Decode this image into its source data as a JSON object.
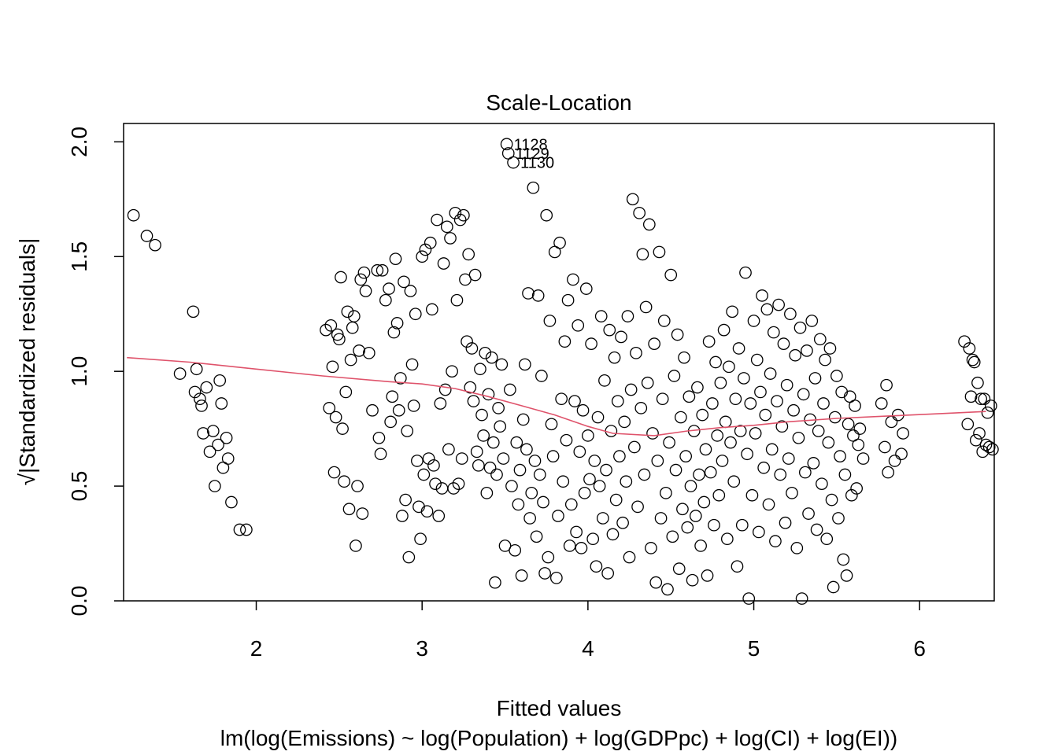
{
  "chart_data": {
    "type": "scatter",
    "title": "Scale-Location",
    "xlabel": "Fitted values",
    "subtitle": "lm(log(Emissions) ~ log(Population) + log(GDPpc) + log(CI) + log(EI))",
    "ylabel": "√|Standardized residuals|",
    "xlim": [
      1.2,
      6.45
    ],
    "ylim": [
      0.0,
      2.08
    ],
    "x_ticks": [
      "2",
      "3",
      "4",
      "5",
      "6"
    ],
    "y_ticks": [
      "0.0",
      "0.5",
      "1.0",
      "1.5",
      "2.0"
    ],
    "point_style": "open-circle",
    "smoother_color": "#DF536B",
    "smoother": [
      [
        1.22,
        1.06
      ],
      [
        1.6,
        1.04
      ],
      [
        2.0,
        1.01
      ],
      [
        2.4,
        0.98
      ],
      [
        2.8,
        0.955
      ],
      [
        3.0,
        0.945
      ],
      [
        3.2,
        0.925
      ],
      [
        3.4,
        0.89
      ],
      [
        3.6,
        0.85
      ],
      [
        3.8,
        0.81
      ],
      [
        4.0,
        0.76
      ],
      [
        4.15,
        0.73
      ],
      [
        4.4,
        0.72
      ],
      [
        4.6,
        0.74
      ],
      [
        4.8,
        0.755
      ],
      [
        5.0,
        0.765
      ],
      [
        5.2,
        0.78
      ],
      [
        5.5,
        0.795
      ],
      [
        5.8,
        0.805
      ],
      [
        6.1,
        0.815
      ],
      [
        6.4,
        0.825
      ]
    ],
    "labeled_points": [
      {
        "label": "1128",
        "x": 3.51,
        "y": 1.99
      },
      {
        "label": "1129",
        "x": 3.52,
        "y": 1.95
      },
      {
        "label": "1130",
        "x": 3.55,
        "y": 1.91
      }
    ],
    "points": [
      [
        1.26,
        1.68
      ],
      [
        1.34,
        1.59
      ],
      [
        1.39,
        1.55
      ],
      [
        1.54,
        0.99
      ],
      [
        1.62,
        1.26
      ],
      [
        1.63,
        0.91
      ],
      [
        1.64,
        1.01
      ],
      [
        1.66,
        0.88
      ],
      [
        1.67,
        0.85
      ],
      [
        1.68,
        0.73
      ],
      [
        1.7,
        0.93
      ],
      [
        1.72,
        0.65
      ],
      [
        1.74,
        0.74
      ],
      [
        1.75,
        0.5
      ],
      [
        1.77,
        0.68
      ],
      [
        1.78,
        0.96
      ],
      [
        1.79,
        0.86
      ],
      [
        1.8,
        0.58
      ],
      [
        1.82,
        0.71
      ],
      [
        1.83,
        0.62
      ],
      [
        1.85,
        0.43
      ],
      [
        1.9,
        0.31
      ],
      [
        1.94,
        0.31
      ],
      [
        2.42,
        1.18
      ],
      [
        2.44,
        0.84
      ],
      [
        2.45,
        1.2
      ],
      [
        2.46,
        1.02
      ],
      [
        2.47,
        0.56
      ],
      [
        2.48,
        0.8
      ],
      [
        2.49,
        1.16
      ],
      [
        2.5,
        1.14
      ],
      [
        2.51,
        1.41
      ],
      [
        2.52,
        0.75
      ],
      [
        2.53,
        0.52
      ],
      [
        2.54,
        0.91
      ],
      [
        2.55,
        1.26
      ],
      [
        2.56,
        0.4
      ],
      [
        2.57,
        1.05
      ],
      [
        2.58,
        1.19
      ],
      [
        2.59,
        1.24
      ],
      [
        2.6,
        0.24
      ],
      [
        2.61,
        0.5
      ],
      [
        2.62,
        1.09
      ],
      [
        2.63,
        1.4
      ],
      [
        2.64,
        0.38
      ],
      [
        2.65,
        1.43
      ],
      [
        2.66,
        1.35
      ],
      [
        2.68,
        1.08
      ],
      [
        2.7,
        0.83
      ],
      [
        2.73,
        1.44
      ],
      [
        2.74,
        0.71
      ],
      [
        2.75,
        0.64
      ],
      [
        2.76,
        1.44
      ],
      [
        2.78,
        1.31
      ],
      [
        2.8,
        1.36
      ],
      [
        2.81,
        0.78
      ],
      [
        2.82,
        0.89
      ],
      [
        2.83,
        1.17
      ],
      [
        2.84,
        1.49
      ],
      [
        2.85,
        1.21
      ],
      [
        2.86,
        0.83
      ],
      [
        2.87,
        0.97
      ],
      [
        2.88,
        0.37
      ],
      [
        2.89,
        1.39
      ],
      [
        2.9,
        0.44
      ],
      [
        2.91,
        0.74
      ],
      [
        2.92,
        0.19
      ],
      [
        2.93,
        1.35
      ],
      [
        2.94,
        1.03
      ],
      [
        2.95,
        0.85
      ],
      [
        2.96,
        1.25
      ],
      [
        2.97,
        0.61
      ],
      [
        2.98,
        0.41
      ],
      [
        2.99,
        0.27
      ],
      [
        3.0,
        1.5
      ],
      [
        3.01,
        0.55
      ],
      [
        3.02,
        1.53
      ],
      [
        3.03,
        0.39
      ],
      [
        3.04,
        0.62
      ],
      [
        3.05,
        1.56
      ],
      [
        3.06,
        1.27
      ],
      [
        3.07,
        0.59
      ],
      [
        3.08,
        0.51
      ],
      [
        3.09,
        1.66
      ],
      [
        3.1,
        0.37
      ],
      [
        3.11,
        0.86
      ],
      [
        3.12,
        0.49
      ],
      [
        3.13,
        1.47
      ],
      [
        3.14,
        0.92
      ],
      [
        3.15,
        1.63
      ],
      [
        3.16,
        0.66
      ],
      [
        3.17,
        1.58
      ],
      [
        3.18,
        1.0
      ],
      [
        3.19,
        0.49
      ],
      [
        3.2,
        1.69
      ],
      [
        3.21,
        1.31
      ],
      [
        3.22,
        0.51
      ],
      [
        3.23,
        1.66
      ],
      [
        3.24,
        0.62
      ],
      [
        3.25,
        1.68
      ],
      [
        3.26,
        1.4
      ],
      [
        3.27,
        1.13
      ],
      [
        3.28,
        1.51
      ],
      [
        3.29,
        0.93
      ],
      [
        3.3,
        1.1
      ],
      [
        3.31,
        0.87
      ],
      [
        3.32,
        1.42
      ],
      [
        3.33,
        0.65
      ],
      [
        3.34,
        0.59
      ],
      [
        3.35,
        1.01
      ],
      [
        3.36,
        0.81
      ],
      [
        3.37,
        0.72
      ],
      [
        3.38,
        1.08
      ],
      [
        3.39,
        0.47
      ],
      [
        3.4,
        0.9
      ],
      [
        3.41,
        0.58
      ],
      [
        3.42,
        1.06
      ],
      [
        3.43,
        0.69
      ],
      [
        3.44,
        0.08
      ],
      [
        3.45,
        0.55
      ],
      [
        3.46,
        0.84
      ],
      [
        3.47,
        0.76
      ],
      [
        3.48,
        1.03
      ],
      [
        3.49,
        0.62
      ],
      [
        3.5,
        0.24
      ],
      [
        3.51,
        1.99
      ],
      [
        3.52,
        1.95
      ],
      [
        3.53,
        0.92
      ],
      [
        3.54,
        0.5
      ],
      [
        3.55,
        1.91
      ],
      [
        3.56,
        0.22
      ],
      [
        3.57,
        0.69
      ],
      [
        3.58,
        0.42
      ],
      [
        3.59,
        0.57
      ],
      [
        3.6,
        0.11
      ],
      [
        3.61,
        0.79
      ],
      [
        3.62,
        1.03
      ],
      [
        3.63,
        0.66
      ],
      [
        3.64,
        1.34
      ],
      [
        3.65,
        0.36
      ],
      [
        3.66,
        0.47
      ],
      [
        3.67,
        1.8
      ],
      [
        3.68,
        0.61
      ],
      [
        3.69,
        0.28
      ],
      [
        3.7,
        1.33
      ],
      [
        3.71,
        0.55
      ],
      [
        3.72,
        0.98
      ],
      [
        3.73,
        0.43
      ],
      [
        3.74,
        0.12
      ],
      [
        3.75,
        1.68
      ],
      [
        3.76,
        0.19
      ],
      [
        3.77,
        1.22
      ],
      [
        3.78,
        0.77
      ],
      [
        3.79,
        0.63
      ],
      [
        3.8,
        1.52
      ],
      [
        3.81,
        0.1
      ],
      [
        3.82,
        0.37
      ],
      [
        3.83,
        1.56
      ],
      [
        3.84,
        0.88
      ],
      [
        3.85,
        0.52
      ],
      [
        3.86,
        1.13
      ],
      [
        3.87,
        0.7
      ],
      [
        3.88,
        1.31
      ],
      [
        3.89,
        0.24
      ],
      [
        3.9,
        0.42
      ],
      [
        3.91,
        1.4
      ],
      [
        3.92,
        0.87
      ],
      [
        3.93,
        0.3
      ],
      [
        3.94,
        1.2
      ],
      [
        3.95,
        0.65
      ],
      [
        3.96,
        0.23
      ],
      [
        3.97,
        0.83
      ],
      [
        3.98,
        0.47
      ],
      [
        3.99,
        1.36
      ],
      [
        4.0,
        0.72
      ],
      [
        4.01,
        0.53
      ],
      [
        4.02,
        1.12
      ],
      [
        4.03,
        0.27
      ],
      [
        4.04,
        0.61
      ],
      [
        4.05,
        0.15
      ],
      [
        4.06,
        0.8
      ],
      [
        4.07,
        0.5
      ],
      [
        4.08,
        1.24
      ],
      [
        4.09,
        0.36
      ],
      [
        4.1,
        0.96
      ],
      [
        4.11,
        0.57
      ],
      [
        4.12,
        0.12
      ],
      [
        4.13,
        1.18
      ],
      [
        4.14,
        0.74
      ],
      [
        4.15,
        0.29
      ],
      [
        4.16,
        1.06
      ],
      [
        4.17,
        0.44
      ],
      [
        4.18,
        0.87
      ],
      [
        4.19,
        0.63
      ],
      [
        4.2,
        1.15
      ],
      [
        4.21,
        0.34
      ],
      [
        4.22,
        0.78
      ],
      [
        4.23,
        0.52
      ],
      [
        4.24,
        1.24
      ],
      [
        4.25,
        0.19
      ],
      [
        4.26,
        0.92
      ],
      [
        4.27,
        1.75
      ],
      [
        4.28,
        0.67
      ],
      [
        4.29,
        1.08
      ],
      [
        4.3,
        0.41
      ],
      [
        4.31,
        1.69
      ],
      [
        4.32,
        0.84
      ],
      [
        4.33,
        1.51
      ],
      [
        4.34,
        0.55
      ],
      [
        4.35,
        1.28
      ],
      [
        4.36,
        0.95
      ],
      [
        4.37,
        1.64
      ],
      [
        4.38,
        0.23
      ],
      [
        4.39,
        0.73
      ],
      [
        4.4,
        1.12
      ],
      [
        4.41,
        0.08
      ],
      [
        4.42,
        0.61
      ],
      [
        4.43,
        1.52
      ],
      [
        4.44,
        0.36
      ],
      [
        4.45,
        0.88
      ],
      [
        4.46,
        1.22
      ],
      [
        4.47,
        0.47
      ],
      [
        4.48,
        0.05
      ],
      [
        4.49,
        0.69
      ],
      [
        4.5,
        1.42
      ],
      [
        4.51,
        0.28
      ],
      [
        4.52,
        0.98
      ],
      [
        4.53,
        0.57
      ],
      [
        4.54,
        1.16
      ],
      [
        4.55,
        0.14
      ],
      [
        4.56,
        0.8
      ],
      [
        4.57,
        0.4
      ],
      [
        4.58,
        1.06
      ],
      [
        4.59,
        0.63
      ],
      [
        4.6,
        0.32
      ],
      [
        4.61,
        0.89
      ],
      [
        4.62,
        0.5
      ],
      [
        4.63,
        0.09
      ],
      [
        4.64,
        0.74
      ],
      [
        4.65,
        0.37
      ],
      [
        4.66,
        0.93
      ],
      [
        4.67,
        0.55
      ],
      [
        4.68,
        0.24
      ],
      [
        4.69,
        0.81
      ],
      [
        4.7,
        0.43
      ],
      [
        4.71,
        0.66
      ],
      [
        4.72,
        0.11
      ],
      [
        4.73,
        1.13
      ],
      [
        4.74,
        0.56
      ],
      [
        4.75,
        0.86
      ],
      [
        4.76,
        0.33
      ],
      [
        4.77,
        1.04
      ],
      [
        4.78,
        0.72
      ],
      [
        4.79,
        0.46
      ],
      [
        4.8,
        0.95
      ],
      [
        4.81,
        0.61
      ],
      [
        4.82,
        1.18
      ],
      [
        4.83,
        0.78
      ],
      [
        4.84,
        0.27
      ],
      [
        4.85,
        1.02
      ],
      [
        4.86,
        0.69
      ],
      [
        4.87,
        1.26
      ],
      [
        4.88,
        0.52
      ],
      [
        4.89,
        0.88
      ],
      [
        4.9,
        0.15
      ],
      [
        4.91,
        1.1
      ],
      [
        4.92,
        0.74
      ],
      [
        4.93,
        0.33
      ],
      [
        4.94,
        0.97
      ],
      [
        4.95,
        1.43
      ],
      [
        4.96,
        0.64
      ],
      [
        4.97,
        0.01
      ],
      [
        4.98,
        0.86
      ],
      [
        4.99,
        0.46
      ],
      [
        5.0,
        1.22
      ],
      [
        5.01,
        0.73
      ],
      [
        5.02,
        1.05
      ],
      [
        5.03,
        0.3
      ],
      [
        5.04,
        0.91
      ],
      [
        5.05,
        1.33
      ],
      [
        5.06,
        0.58
      ],
      [
        5.07,
        0.81
      ],
      [
        5.08,
        1.27
      ],
      [
        5.09,
        0.42
      ],
      [
        5.1,
        0.99
      ],
      [
        5.11,
        0.66
      ],
      [
        5.12,
        1.17
      ],
      [
        5.13,
        0.26
      ],
      [
        5.14,
        0.87
      ],
      [
        5.15,
        1.29
      ],
      [
        5.16,
        0.55
      ],
      [
        5.17,
        0.76
      ],
      [
        5.18,
        1.12
      ],
      [
        5.19,
        0.34
      ],
      [
        5.2,
        0.94
      ],
      [
        5.21,
        0.62
      ],
      [
        5.22,
        1.25
      ],
      [
        5.23,
        0.47
      ],
      [
        5.24,
        0.83
      ],
      [
        5.25,
        1.07
      ],
      [
        5.26,
        0.23
      ],
      [
        5.27,
        0.71
      ],
      [
        5.28,
        1.19
      ],
      [
        5.29,
        0.01
      ],
      [
        5.3,
        0.9
      ],
      [
        5.31,
        0.56
      ],
      [
        5.32,
        1.09
      ],
      [
        5.33,
        0.38
      ],
      [
        5.34,
        0.79
      ],
      [
        5.35,
        1.22
      ],
      [
        5.36,
        0.6
      ],
      [
        5.37,
        0.97
      ],
      [
        5.38,
        0.31
      ],
      [
        5.39,
        0.74
      ],
      [
        5.4,
        1.14
      ],
      [
        5.41,
        0.51
      ],
      [
        5.42,
        0.86
      ],
      [
        5.43,
        1.05
      ],
      [
        5.44,
        0.27
      ],
      [
        5.45,
        0.69
      ],
      [
        5.46,
        1.1
      ],
      [
        5.47,
        0.44
      ],
      [
        5.48,
        0.06
      ],
      [
        5.49,
        0.8
      ],
      [
        5.5,
        0.98
      ],
      [
        5.51,
        0.36
      ],
      [
        5.52,
        0.63
      ],
      [
        5.53,
        0.91
      ],
      [
        5.54,
        0.18
      ],
      [
        5.55,
        0.55
      ],
      [
        5.56,
        0.11
      ],
      [
        5.57,
        0.77
      ],
      [
        5.58,
        0.89
      ],
      [
        5.59,
        0.46
      ],
      [
        5.6,
        0.72
      ],
      [
        5.61,
        0.85
      ],
      [
        5.62,
        0.49
      ],
      [
        5.63,
        0.68
      ],
      [
        5.64,
        0.75
      ],
      [
        5.66,
        0.62
      ],
      [
        5.77,
        0.86
      ],
      [
        5.79,
        0.67
      ],
      [
        5.8,
        0.94
      ],
      [
        5.81,
        0.56
      ],
      [
        5.83,
        0.78
      ],
      [
        5.85,
        0.61
      ],
      [
        5.87,
        0.81
      ],
      [
        5.89,
        0.64
      ],
      [
        5.9,
        0.73
      ],
      [
        6.27,
        1.13
      ],
      [
        6.29,
        0.77
      ],
      [
        6.3,
        1.1
      ],
      [
        6.31,
        0.89
      ],
      [
        6.32,
        1.05
      ],
      [
        6.33,
        1.04
      ],
      [
        6.34,
        0.7
      ],
      [
        6.35,
        0.95
      ],
      [
        6.36,
        0.73
      ],
      [
        6.37,
        0.88
      ],
      [
        6.38,
        0.65
      ],
      [
        6.39,
        0.88
      ],
      [
        6.4,
        0.68
      ],
      [
        6.41,
        0.82
      ],
      [
        6.42,
        0.67
      ],
      [
        6.43,
        0.85
      ],
      [
        6.44,
        0.66
      ]
    ]
  }
}
